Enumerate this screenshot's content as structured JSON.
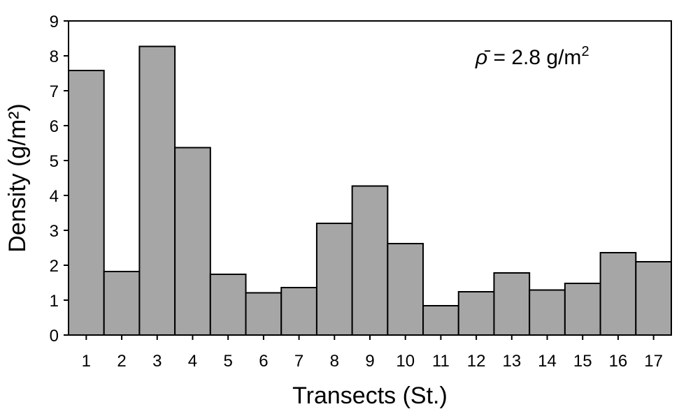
{
  "chart_data": {
    "type": "bar",
    "title": "",
    "xlabel": "Transects (St.)",
    "ylabel": "Density (g/m²)",
    "ylim": [
      0,
      9
    ],
    "yticks": [
      0,
      1,
      2,
      3,
      4,
      5,
      6,
      7,
      8,
      9
    ],
    "categories": [
      "1",
      "2",
      "3",
      "4",
      "5",
      "6",
      "7",
      "8",
      "9",
      "10",
      "11",
      "12",
      "13",
      "14",
      "15",
      "16",
      "17"
    ],
    "values": [
      7.58,
      1.82,
      8.27,
      5.37,
      1.74,
      1.21,
      1.36,
      3.2,
      4.27,
      2.62,
      0.84,
      1.24,
      1.78,
      1.29,
      1.48,
      2.36,
      2.1
    ],
    "bar_color": "#a6a6a6",
    "grid": false,
    "legend": "none",
    "annotation": {
      "symbol": "ρ̄",
      "text": " = 2.8 g/m",
      "superscript": "2"
    }
  }
}
